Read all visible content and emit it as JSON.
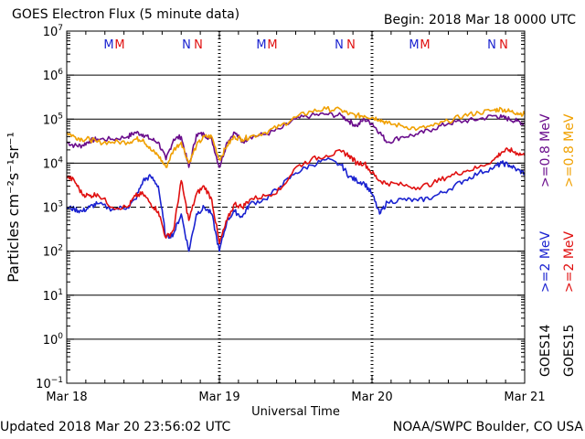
{
  "header": {
    "title": "GOES Electron Flux (5 minute data)",
    "begin": "Begin: 2018 Mar 18 0000 UTC"
  },
  "footer": {
    "updated": "Updated 2018 Mar 20 23:56:02 UTC",
    "credit": "NOAA/SWPC Boulder, CO USA"
  },
  "colors": {
    "goes14_08": "#6a0d8c",
    "goes15_08": "#f0a000",
    "goes14_2": "#1a22d0",
    "goes15_2": "#e01010",
    "maneuver_m": "#1a22d0",
    "maneuver_n": "#e01010"
  },
  "chart_data": {
    "type": "line",
    "title": "GOES Electron Flux (5 minute data)",
    "xlabel": "Universal Time",
    "ylabel": "Particles cm⁻²s⁻¹sr⁻¹",
    "y_scale": "log",
    "ylim": [
      0.1,
      10000000
    ],
    "ytick_exponents": [
      -1,
      0,
      1,
      2,
      3,
      4,
      5,
      6,
      7
    ],
    "x_days": [
      "Mar 18",
      "Mar 19",
      "Mar 20",
      "Mar 21"
    ],
    "xlim_days": [
      0,
      3
    ],
    "grid": "horizontal at each decade",
    "threshold_line": 1000,
    "day_markers": [
      "M",
      "M",
      "N",
      "N"
    ],
    "legend": {
      "position": "right",
      "satellites": [
        "GOES14",
        "GOES15"
      ],
      "entries": [
        {
          "text": ">=0.8 MeV",
          "color": "#6a0d8c"
        },
        {
          "text": ">=0.8 MeV",
          "color": "#f0a000"
        },
        {
          "text": ">=2 MeV",
          "color": "#1a22d0"
        },
        {
          "text": ">=2 MeV",
          "color": "#e01010"
        }
      ]
    },
    "series": [
      {
        "color": "#6a0d8c",
        "x": [
          0.0,
          0.05,
          0.1,
          0.15,
          0.2,
          0.3,
          0.4,
          0.45,
          0.5,
          0.55,
          0.6,
          0.65,
          0.7,
          0.75,
          0.8,
          0.85,
          0.9,
          0.95,
          1.0,
          1.05,
          1.1,
          1.15,
          1.2,
          1.3,
          1.4,
          1.5,
          1.6,
          1.7,
          1.8,
          1.85,
          1.9,
          1.95,
          2.0,
          2.05,
          2.1,
          2.2,
          2.3,
          2.4,
          2.5,
          2.6,
          2.7,
          2.8,
          2.85,
          2.9,
          2.95,
          3.0
        ],
        "y": [
          30000,
          25000,
          25000,
          32000,
          35000,
          35000,
          40000,
          50000,
          45000,
          35000,
          30000,
          12000,
          35000,
          40000,
          8000,
          45000,
          45000,
          35000,
          8000,
          30000,
          50000,
          30000,
          40000,
          45000,
          60000,
          100000,
          120000,
          130000,
          120000,
          90000,
          70000,
          100000,
          80000,
          50000,
          30000,
          40000,
          45000,
          60000,
          80000,
          90000,
          100000,
          120000,
          110000,
          100000,
          90000,
          80000
        ]
      },
      {
        "color": "#f0a000",
        "x": [
          0.0,
          0.05,
          0.1,
          0.15,
          0.2,
          0.3,
          0.4,
          0.45,
          0.5,
          0.55,
          0.6,
          0.65,
          0.7,
          0.75,
          0.8,
          0.85,
          0.9,
          0.95,
          1.0,
          1.05,
          1.1,
          1.15,
          1.2,
          1.3,
          1.4,
          1.5,
          1.6,
          1.7,
          1.8,
          1.85,
          1.9,
          1.95,
          2.0,
          2.05,
          2.1,
          2.2,
          2.3,
          2.4,
          2.5,
          2.6,
          2.7,
          2.8,
          2.85,
          2.9,
          2.95,
          3.0
        ],
        "y": [
          50000,
          40000,
          35000,
          35000,
          30000,
          30000,
          30000,
          35000,
          35000,
          20000,
          15000,
          8000,
          20000,
          30000,
          10000,
          25000,
          40000,
          40000,
          12000,
          25000,
          40000,
          35000,
          40000,
          50000,
          70000,
          110000,
          150000,
          170000,
          160000,
          130000,
          120000,
          120000,
          110000,
          100000,
          80000,
          70000,
          60000,
          70000,
          90000,
          120000,
          140000,
          160000,
          170000,
          150000,
          140000,
          130000
        ]
      },
      {
        "color": "#1a22d0",
        "x": [
          0.0,
          0.05,
          0.1,
          0.15,
          0.2,
          0.3,
          0.4,
          0.45,
          0.5,
          0.55,
          0.6,
          0.65,
          0.7,
          0.75,
          0.8,
          0.85,
          0.9,
          0.95,
          1.0,
          1.05,
          1.1,
          1.15,
          1.2,
          1.3,
          1.4,
          1.5,
          1.6,
          1.7,
          1.8,
          1.85,
          1.9,
          1.95,
          2.0,
          2.05,
          2.1,
          2.2,
          2.3,
          2.4,
          2.5,
          2.6,
          2.7,
          2.8,
          2.85,
          2.9,
          2.95,
          3.0
        ],
        "y": [
          1000,
          900,
          800,
          1000,
          1200,
          900,
          1000,
          1500,
          4000,
          5000,
          3000,
          200,
          250,
          700,
          100,
          700,
          1000,
          700,
          100,
          500,
          800,
          600,
          1200,
          1500,
          3000,
          6000,
          9000,
          12000,
          9000,
          5000,
          4000,
          3500,
          2000,
          700,
          1300,
          1500,
          1400,
          1700,
          2500,
          4000,
          6000,
          8000,
          10000,
          9000,
          7000,
          6000
        ]
      },
      {
        "color": "#e01010",
        "x": [
          0.0,
          0.05,
          0.1,
          0.15,
          0.2,
          0.3,
          0.4,
          0.45,
          0.5,
          0.55,
          0.6,
          0.65,
          0.7,
          0.75,
          0.8,
          0.85,
          0.9,
          0.95,
          1.0,
          1.05,
          1.1,
          1.15,
          1.2,
          1.3,
          1.4,
          1.5,
          1.6,
          1.7,
          1.8,
          1.85,
          1.9,
          1.95,
          2.0,
          2.05,
          2.1,
          2.2,
          2.3,
          2.4,
          2.5,
          2.6,
          2.7,
          2.8,
          2.85,
          2.9,
          2.95,
          3.0
        ],
        "y": [
          5000,
          4000,
          2000,
          1800,
          2000,
          1000,
          1000,
          1800,
          2000,
          1200,
          800,
          200,
          300,
          4000,
          500,
          2000,
          3000,
          1500,
          150,
          500,
          1200,
          1000,
          1500,
          1800,
          2500,
          8000,
          12000,
          15000,
          18000,
          15000,
          10000,
          10000,
          6000,
          4000,
          3500,
          3200,
          2800,
          3500,
          5000,
          6500,
          8000,
          12000,
          18000,
          20000,
          17000,
          15000
        ]
      }
    ]
  }
}
